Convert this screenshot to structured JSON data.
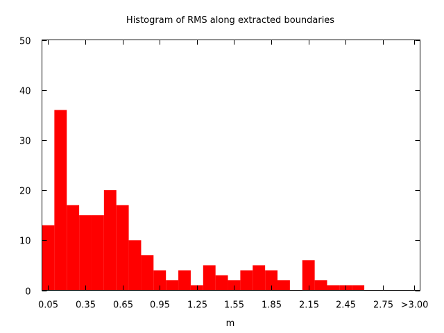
{
  "chart_data": {
    "type": "bar",
    "title": "Histogram of RMS along extracted boundaries",
    "xlabel": "m",
    "ylabel": "",
    "xlim": [
      0.0,
      3.05
    ],
    "ylim": [
      0,
      50
    ],
    "grid": false,
    "legend": "none",
    "bin_width": 0.1,
    "bar_color": "#ff0000",
    "x_tick_values": [
      0.05,
      0.35,
      0.65,
      0.95,
      1.25,
      1.55,
      1.85,
      2.15,
      2.45,
      2.75,
      3.0
    ],
    "x_tick_labels": [
      "0.05",
      "0.35",
      "0.65",
      "0.95",
      "1.25",
      "1.55",
      "1.85",
      "2.15",
      "2.45",
      "2.75",
      ">3.00"
    ],
    "y_tick_values": [
      0,
      10,
      20,
      30,
      40,
      50
    ],
    "y_tick_labels": [
      "0",
      "10",
      "20",
      "30",
      "40",
      "50"
    ],
    "bins": [
      {
        "center": 0.05,
        "value": 13
      },
      {
        "center": 0.15,
        "value": 36
      },
      {
        "center": 0.25,
        "value": 17
      },
      {
        "center": 0.35,
        "value": 15
      },
      {
        "center": 0.45,
        "value": 15
      },
      {
        "center": 0.55,
        "value": 20
      },
      {
        "center": 0.65,
        "value": 17
      },
      {
        "center": 0.75,
        "value": 10
      },
      {
        "center": 0.85,
        "value": 7
      },
      {
        "center": 0.95,
        "value": 4
      },
      {
        "center": 1.05,
        "value": 2
      },
      {
        "center": 1.15,
        "value": 4
      },
      {
        "center": 1.25,
        "value": 1
      },
      {
        "center": 1.35,
        "value": 5
      },
      {
        "center": 1.45,
        "value": 3
      },
      {
        "center": 1.55,
        "value": 2
      },
      {
        "center": 1.65,
        "value": 4
      },
      {
        "center": 1.75,
        "value": 5
      },
      {
        "center": 1.85,
        "value": 4
      },
      {
        "center": 1.95,
        "value": 2
      },
      {
        "center": 2.05,
        "value": 0
      },
      {
        "center": 2.15,
        "value": 6
      },
      {
        "center": 2.25,
        "value": 2
      },
      {
        "center": 2.35,
        "value": 1
      },
      {
        "center": 2.45,
        "value": 1
      },
      {
        "center": 2.55,
        "value": 1
      },
      {
        "center": 2.65,
        "value": 0
      },
      {
        "center": 2.75,
        "value": 0
      },
      {
        "center": 2.85,
        "value": 0
      },
      {
        "center": 2.95,
        "value": 0
      }
    ]
  }
}
